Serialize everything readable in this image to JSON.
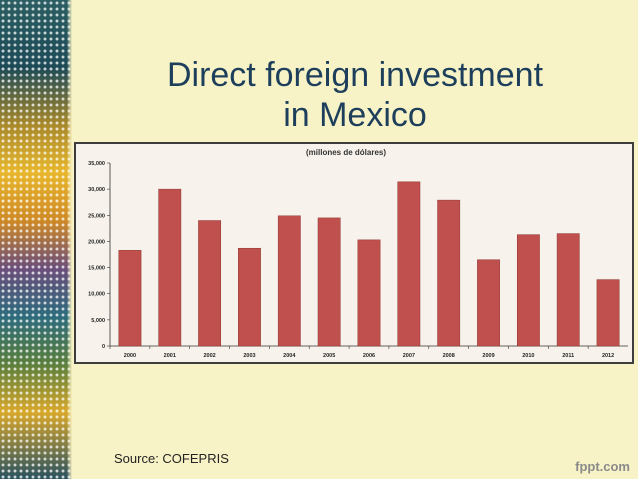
{
  "slide": {
    "title_line1": "Direct foreign investment",
    "title_line2": "in Mexico",
    "source": "Source: COFEPRIS",
    "brand": "fppt.com"
  },
  "colors": {
    "bar": "#c0504d",
    "title": "#1d3f5c",
    "background": "#f8f3c6"
  },
  "chart_data": {
    "type": "bar",
    "title": "(millones de dólares)",
    "categories": [
      "2000",
      "2001",
      "2002",
      "2003",
      "2004",
      "2005",
      "2006",
      "2007",
      "2008",
      "2009",
      "2010",
      "2011",
      "2012"
    ],
    "values": [
      18300,
      30000,
      24000,
      18700,
      24900,
      24500,
      20300,
      31400,
      27900,
      16500,
      21300,
      21500,
      12700
    ],
    "ylim": [
      0,
      35000
    ],
    "yticks": [
      "0",
      "5,000",
      "10,000",
      "15,000",
      "20,000",
      "25,000",
      "30,000",
      "35,000"
    ],
    "grid": false,
    "legend": "none"
  }
}
